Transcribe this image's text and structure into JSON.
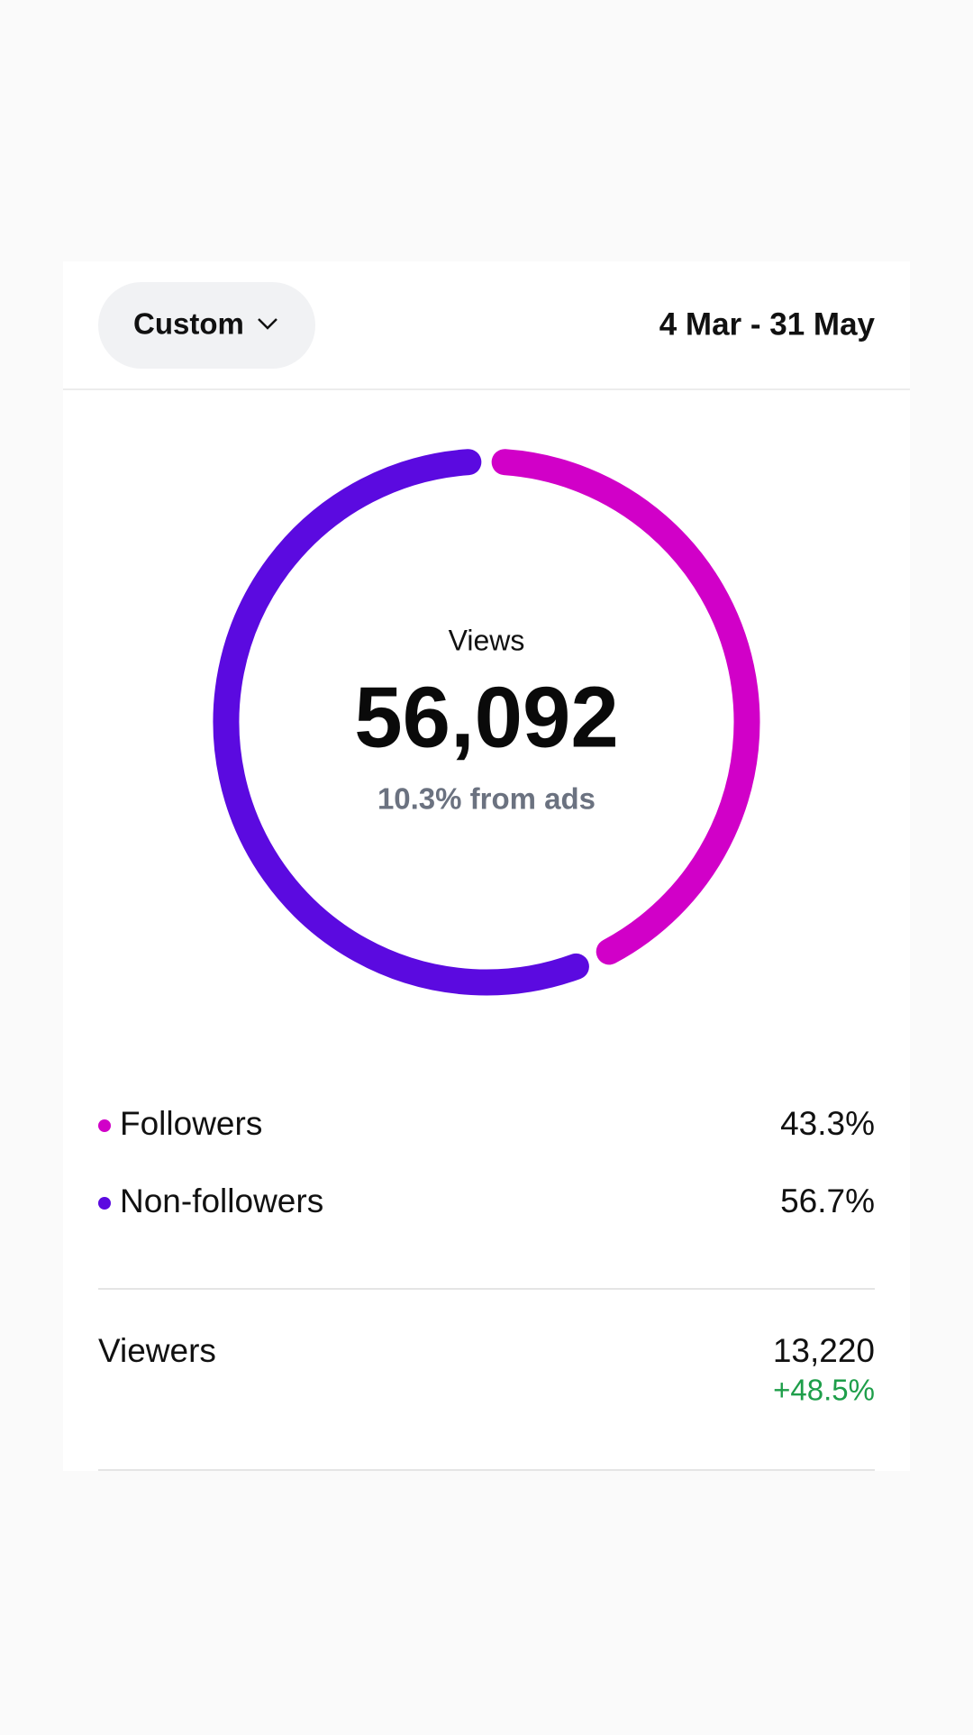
{
  "header": {
    "filter": "Custom",
    "date_range": "4 Mar - 31 May"
  },
  "chart_data": {
    "type": "donut",
    "center_title": "Views",
    "center_value": "56,092",
    "center_subtitle": "10.3% from ads",
    "series": [
      {
        "name": "Followers",
        "color": "#d100c8",
        "values": [
          43.3
        ],
        "value_labels": [
          "43.3%"
        ]
      },
      {
        "name": "Non-followers",
        "color": "#5b0ae0",
        "values": [
          56.7
        ],
        "value_labels": [
          "56.7%"
        ]
      }
    ]
  },
  "viewers": {
    "label": "Viewers",
    "value": "13,220",
    "change": "+48.5%"
  }
}
